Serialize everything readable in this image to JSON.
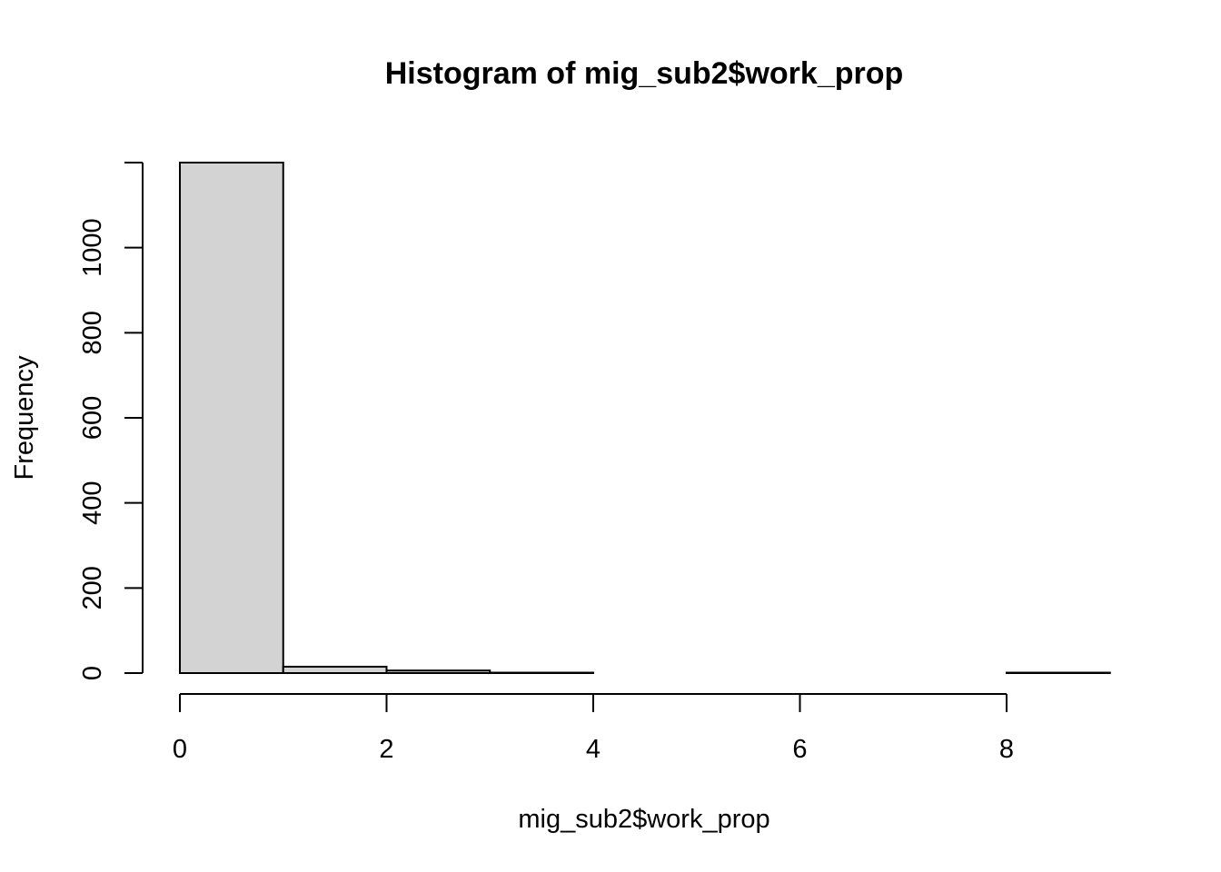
{
  "chart_data": {
    "type": "bar",
    "title": "Histogram of mig_sub2$work_prop",
    "xlabel": "mig_sub2$work_prop",
    "ylabel": "Frequency",
    "bins": [
      {
        "x0": 0,
        "x1": 1,
        "count": 1200
      },
      {
        "x0": 1,
        "x1": 2,
        "count": 15
      },
      {
        "x0": 2,
        "x1": 3,
        "count": 6
      },
      {
        "x0": 3,
        "x1": 4,
        "count": 1
      },
      {
        "x0": 4,
        "x1": 5,
        "count": 0
      },
      {
        "x0": 5,
        "x1": 6,
        "count": 0
      },
      {
        "x0": 6,
        "x1": 7,
        "count": 0
      },
      {
        "x0": 7,
        "x1": 8,
        "count": 0
      },
      {
        "x0": 8,
        "x1": 9,
        "count": 1
      }
    ],
    "xlim": [
      0,
      9
    ],
    "ylim": [
      0,
      1200
    ],
    "x_ticks": [
      0,
      2,
      4,
      6,
      8
    ],
    "y_ticks": [
      0,
      200,
      400,
      600,
      800,
      1000
    ],
    "bar_color": "#d3d3d3",
    "grid": false,
    "legend": "none"
  }
}
